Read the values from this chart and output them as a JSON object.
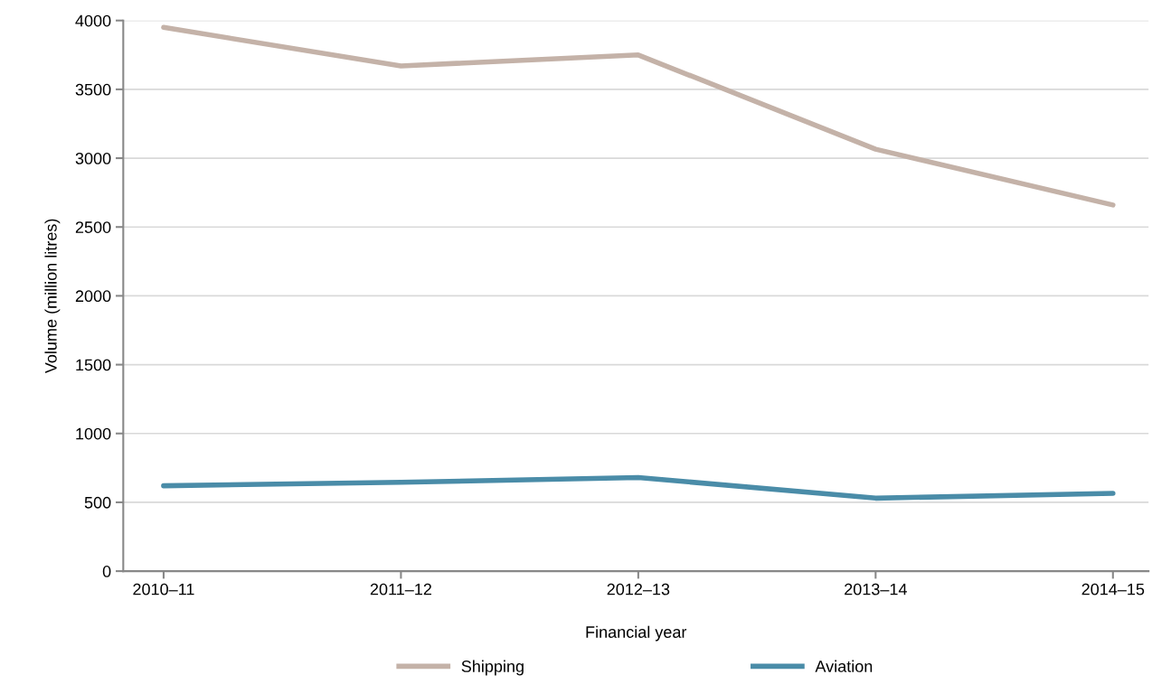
{
  "chart_data": {
    "type": "line",
    "xlabel": "Financial year",
    "ylabel": "Volume (million litres)",
    "categories": [
      "2010–11",
      "2011–12",
      "2012–13",
      "2013–14",
      "2014–15"
    ],
    "series": [
      {
        "name": "Shipping",
        "color": "#c4b2a8",
        "values": [
          3950,
          3670,
          3750,
          3065,
          2660
        ]
      },
      {
        "name": "Aviation",
        "color": "#4a8ca8",
        "values": [
          620,
          645,
          680,
          530,
          565
        ]
      }
    ],
    "ylim": [
      0,
      4000
    ],
    "yticks": [
      0,
      500,
      1000,
      1500,
      2000,
      2500,
      3000,
      3500,
      4000
    ],
    "grid": "y",
    "legend": "bottom",
    "marker": "none",
    "line_style": "solid"
  }
}
